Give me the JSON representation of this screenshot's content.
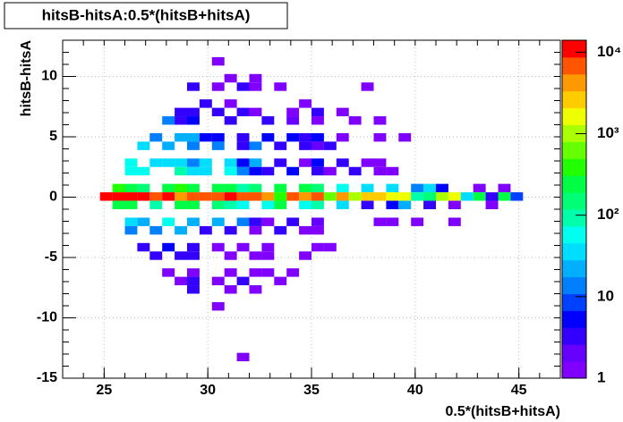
{
  "chart_data": {
    "type": "heatmap2d",
    "title": "hitsB-hitsA:0.5*(hitsB+hitsA)",
    "x_label": "0.5*(hitsB+hitsA)",
    "y_label": "hitsB-hitsA",
    "xlim": [
      23,
      47
    ],
    "ylim": [
      -15,
      13
    ],
    "xticks": [
      25,
      30,
      35,
      40,
      45
    ],
    "yticks": [
      -15,
      -10,
      -5,
      0,
      5,
      10
    ],
    "xbin": 0.6,
    "ybin": 0.7,
    "grid": true,
    "zlog": true,
    "zlim": [
      1,
      14000
    ],
    "zticks": [
      1,
      10,
      {
        "value": 100,
        "label": "10²"
      },
      {
        "value": 1000,
        "label": "10³"
      },
      {
        "value": 10000,
        "label": "10⁴"
      }
    ],
    "palette": [
      "#8000ff",
      "#6600ff",
      "#3300ff",
      "#0000ff",
      "#0040ff",
      "#0080ff",
      "#00b0ff",
      "#00ddff",
      "#00ffee",
      "#00ffaa",
      "#00ff77",
      "#00ff44",
      "#22ff00",
      "#66ff00",
      "#aaff00",
      "#eeff00",
      "#ffcc00",
      "#ff9900",
      "#ff5500",
      "#ff0000"
    ],
    "rows": [
      {
        "y": 10.9,
        "x": [
          30.2
        ],
        "z": [
          1
        ]
      },
      {
        "y": 9.5,
        "x": [
          30.8,
          32.0
        ],
        "z": [
          1,
          1
        ]
      },
      {
        "y": 8.8,
        "x": [
          29.0,
          30.2,
          31.4,
          32.0,
          33.2,
          37.4
        ],
        "z": [
          3,
          1,
          3,
          1,
          1,
          1
        ]
      },
      {
        "y": 7.4,
        "x": [
          29.6,
          30.8,
          34.4
        ],
        "z": [
          4,
          1,
          1
        ]
      },
      {
        "y": 6.7,
        "x": [
          28.4,
          29.0,
          30.2,
          31.4,
          32.0,
          33.8,
          35.0,
          36.2
        ],
        "z": [
          4,
          3,
          4,
          3,
          1,
          1,
          4,
          1
        ]
      },
      {
        "y": 6.0,
        "x": [
          27.8,
          28.4,
          29.0,
          30.8,
          32.6,
          33.8,
          35.0,
          36.8,
          38.0
        ],
        "z": [
          12,
          4,
          5,
          4,
          4,
          2,
          1,
          1,
          1
        ]
      },
      {
        "y": 4.6,
        "x": [
          27.2,
          28.4,
          29.0,
          29.6,
          30.2,
          31.4,
          32.6,
          33.8,
          34.4,
          35.0,
          36.2,
          38.0,
          39.2
        ],
        "z": [
          15,
          20,
          20,
          5,
          6,
          4,
          5,
          5,
          4,
          6,
          1,
          1,
          1
        ]
      },
      {
        "y": 3.9,
        "x": [
          26.6,
          27.8,
          29.0,
          30.2,
          31.4,
          32.0,
          33.2,
          34.4,
          35.0,
          35.6
        ],
        "z": [
          30,
          25,
          15,
          12,
          4,
          12,
          4,
          3,
          2,
          4
        ]
      },
      {
        "y": 2.5,
        "x": [
          26.0,
          27.2,
          27.8,
          28.4,
          29.0,
          29.6,
          30.8,
          31.4,
          32.0,
          33.2,
          34.4,
          35.0,
          36.2,
          37.4,
          38.0
        ],
        "z": [
          60,
          40,
          30,
          30,
          15,
          30,
          30,
          5,
          25,
          4,
          1,
          5,
          3,
          1,
          1
        ]
      },
      {
        "y": 1.8,
        "x": [
          26.0,
          26.6,
          28.4,
          29.0,
          29.6,
          30.8,
          31.4,
          32.0,
          32.6,
          33.8,
          35.0,
          35.6,
          36.8,
          38.0,
          38.6
        ],
        "z": [
          70,
          50,
          80,
          40,
          30,
          50,
          15,
          5,
          4,
          5,
          4,
          1,
          4,
          1,
          1
        ]
      },
      {
        "y": 0.4,
        "x": [
          25.4,
          26.0,
          26.6,
          27.8,
          28.4,
          29.0,
          30.2,
          30.8,
          31.4,
          32.0,
          33.2,
          34.4,
          35.0,
          36.2,
          37.4,
          38.6,
          39.8,
          40.4,
          41.0,
          42.8,
          44.0
        ],
        "z": [
          400,
          300,
          150,
          300,
          400,
          250,
          300,
          200,
          100,
          150,
          300,
          250,
          150,
          70,
          40,
          30,
          15,
          30,
          6,
          1,
          1
        ]
      },
      {
        "y": -0.3,
        "x": [
          24.8,
          25.4,
          26.0,
          26.6,
          27.2,
          27.8,
          28.4,
          29.0,
          29.6,
          30.2,
          30.8,
          31.4,
          32.0,
          32.6,
          33.2,
          33.8,
          34.4,
          35.0,
          35.6,
          36.2,
          36.8,
          37.4,
          38.0,
          38.6,
          39.2,
          39.8,
          40.4,
          41.0,
          41.6,
          42.2,
          42.8,
          43.4,
          44.0,
          44.6
        ],
        "z": [
          12000,
          9000,
          10000,
          11000,
          7000,
          9000,
          5000,
          8000,
          7000,
          6000,
          9000,
          6500,
          7000,
          5000,
          400,
          6000,
          4000,
          6000,
          700,
          3500,
          1200,
          3000,
          3000,
          2000,
          1500,
          80,
          150,
          1000,
          1500,
          30,
          200,
          3,
          300,
          10
        ]
      },
      {
        "y": -1.0,
        "x": [
          25.4,
          26.0,
          27.2,
          28.4,
          29.0,
          30.2,
          30.8,
          31.4,
          32.6,
          33.2,
          34.4,
          35.0,
          36.2,
          37.4,
          38.6,
          39.2,
          40.4,
          41.6,
          43.4
        ],
        "z": [
          250,
          200,
          100,
          300,
          200,
          150,
          100,
          60,
          50,
          200,
          60,
          100,
          30,
          3,
          5,
          20,
          3,
          1,
          1
        ]
      },
      {
        "y": -2.4,
        "x": [
          26.0,
          26.6,
          27.8,
          29.0,
          30.2,
          31.4,
          32.0,
          32.6,
          33.8,
          35.0,
          38.0,
          38.6,
          39.8,
          41.6
        ],
        "z": [
          30,
          25,
          50,
          25,
          25,
          12,
          3,
          1,
          3,
          2,
          1,
          1,
          1,
          1
        ]
      },
      {
        "y": -3.1,
        "x": [
          26.0,
          27.2,
          28.4,
          29.6,
          30.8,
          32.0,
          33.2,
          34.4,
          35.0
        ],
        "z": [
          15,
          12,
          25,
          4,
          4,
          1,
          3,
          1,
          1
        ]
      },
      {
        "y": -4.5,
        "x": [
          26.6,
          27.8,
          29.0,
          30.2,
          31.4,
          32.6,
          35.0,
          35.6
        ],
        "z": [
          4,
          5,
          4,
          1,
          1,
          1,
          1,
          1
        ]
      },
      {
        "y": -5.2,
        "x": [
          27.2,
          28.4,
          29.0,
          30.8,
          32.0,
          32.6,
          34.4
        ],
        "z": [
          3,
          4,
          4,
          1,
          1,
          1,
          1
        ]
      },
      {
        "y": -6.6,
        "x": [
          27.8,
          29.0,
          30.8,
          32.0,
          32.6,
          33.8
        ],
        "z": [
          1,
          1,
          1,
          1,
          1,
          1
        ]
      },
      {
        "y": -7.3,
        "x": [
          28.4,
          29.0,
          30.2,
          31.4,
          33.2
        ],
        "z": [
          1,
          3,
          1,
          3,
          1
        ]
      },
      {
        "y": -8.0,
        "x": [
          29.0,
          30.8,
          32.0
        ],
        "z": [
          3,
          1,
          1
        ]
      },
      {
        "y": -9.4,
        "x": [
          30.2
        ],
        "z": [
          1
        ]
      },
      {
        "y": -13.6,
        "x": [
          31.4
        ],
        "z": [
          1
        ]
      }
    ]
  }
}
